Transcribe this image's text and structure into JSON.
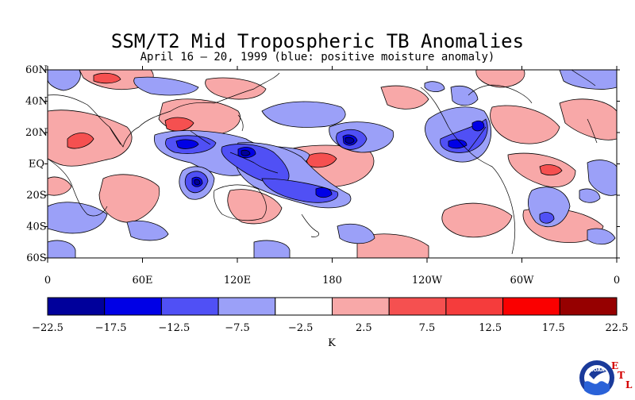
{
  "title": "SSM/T2 Mid Tropospheric TB Anomalies",
  "subtitle": "April 16 – 20, 1999 (blue: positive moisture anomaly)",
  "map": {
    "lat_labels": [
      "60N",
      "40N",
      "20N",
      "EQ",
      "20S",
      "40S",
      "60S"
    ],
    "lat_values": [
      60,
      40,
      20,
      0,
      -20,
      -40,
      -60
    ],
    "lon_labels": [
      "0",
      "60E",
      "120E",
      "180",
      "120W",
      "60W",
      "0"
    ],
    "lon_values": [
      0,
      60,
      120,
      180,
      240,
      300,
      360
    ],
    "lat_range": [
      -60,
      60
    ],
    "lon_range": [
      0,
      360
    ]
  },
  "colorbar": {
    "unit": "K",
    "tick_labels": [
      "−22.5",
      "−17.5",
      "−12.5",
      "−7.5",
      "−2.5",
      "2.5",
      "7.5",
      "12.5",
      "17.5",
      "22.5"
    ],
    "colors": [
      "#00009b",
      "#0000e6",
      "#5050f5",
      "#9ba0f8",
      "#ffffff",
      "#f8a8a8",
      "#f55050",
      "#f53c3c",
      "#fa0000",
      "#960000"
    ]
  },
  "anomaly_colors": {
    "blue_strong": "#0000e6",
    "blue_mid": "#5050f5",
    "blue_light": "#9ba0f8",
    "red_light": "#f8a8a8",
    "red_mid": "#f55050",
    "red_strong": "#fa0000"
  },
  "logo": {
    "name": "NOAA",
    "etl_letters": [
      "E",
      "T",
      "L"
    ]
  }
}
